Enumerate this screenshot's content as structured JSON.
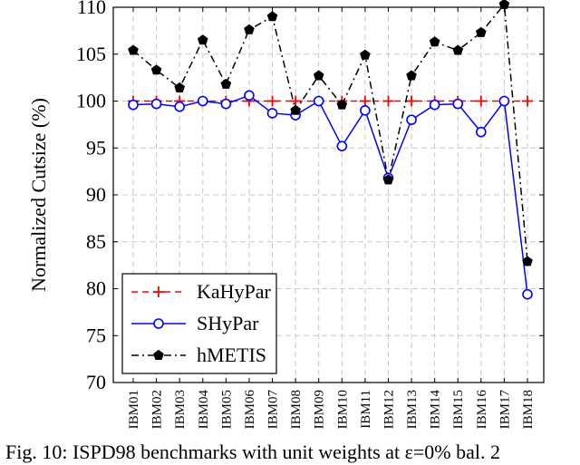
{
  "chart_data": {
    "type": "line",
    "ylabel": "Normalized Cutsize (%)",
    "ylim": [
      70,
      110
    ],
    "yticks": [
      70,
      75,
      80,
      85,
      90,
      95,
      100,
      105,
      110
    ],
    "categories": [
      "IBM01",
      "IBM02",
      "IBM03",
      "IBM04",
      "IBM05",
      "IBM06",
      "IBM07",
      "IBM08",
      "IBM09",
      "IBM10",
      "IBM11",
      "IBM12",
      "IBM13",
      "IBM14",
      "IBM15",
      "IBM16",
      "IBM17",
      "IBM18"
    ],
    "grid": true,
    "legend_position": "bottom-left",
    "series": [
      {
        "name": "KaHyPar",
        "color": "#ff0000",
        "dash": "dashed",
        "marker": "plus",
        "values": [
          100,
          100,
          100,
          100,
          100,
          100,
          100,
          100,
          100,
          100,
          100,
          100,
          100,
          100,
          100,
          100,
          100,
          100
        ]
      },
      {
        "name": "SHyPar",
        "color": "#0000ff",
        "dash": "solid",
        "marker": "circle",
        "values": [
          99.6,
          99.7,
          99.4,
          100,
          99.7,
          100.6,
          98.7,
          98.5,
          100,
          95.2,
          99,
          91.8,
          98,
          99.6,
          99.7,
          96.7,
          100,
          79.4
        ]
      },
      {
        "name": "hMETIS",
        "color": "#000000",
        "dash": "dashdot",
        "marker": "pentagon",
        "values": [
          105.4,
          103.3,
          101.4,
          106.5,
          101.8,
          107.6,
          109,
          99,
          102.7,
          99.6,
          104.9,
          91.6,
          102.7,
          106.3,
          105.4,
          107.3,
          110.3,
          82.9
        ]
      }
    ]
  },
  "caption": "Fig. 10: ISPD98 benchmarks with unit weights at ε=0% bal. 2"
}
